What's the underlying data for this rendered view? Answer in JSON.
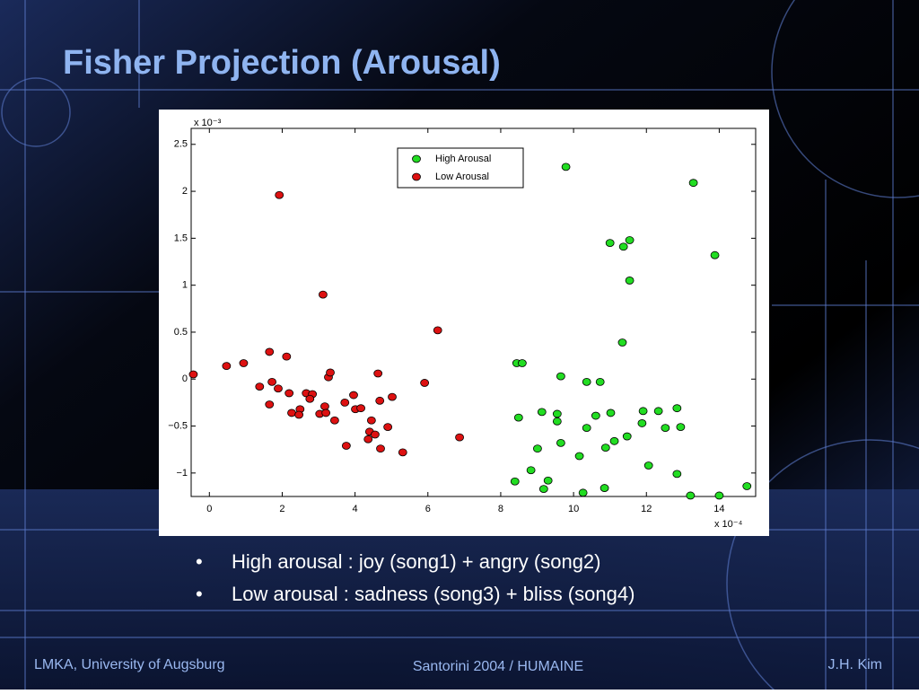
{
  "slide": {
    "title": "Fisher Projection (Arousal)",
    "bullets": [
      "High arousal : joy (song1) + angry (song2)",
      "Low arousal : sadness (song3) + bliss (song4)"
    ],
    "footer_left": "LMKA, University of Augsburg",
    "footer_center": "Santorini 2004 / HUMAINE",
    "footer_right": "J.H. Kim"
  },
  "chart_data": {
    "type": "scatter",
    "y_scale_label": "x 10⁻³",
    "x_scale_label": "x 10⁻⁴",
    "xlim": [
      -0.5,
      15
    ],
    "ylim": [
      -1.25,
      2.67
    ],
    "xticks": [
      0,
      2,
      4,
      6,
      8,
      10,
      12,
      14
    ],
    "yticks": [
      {
        "value": -1,
        "label": "−1"
      },
      {
        "value": -0.5,
        "label": "−0.5"
      },
      0,
      0.5,
      1,
      1.5,
      2,
      2.5
    ],
    "legend_position": "upper center",
    "series": [
      {
        "name": "High Arousal",
        "color": "#22dd22",
        "x": [
          9.79,
          13.29,
          11.0,
          11.37,
          11.54,
          13.88,
          11.54,
          11.34,
          8.44,
          8.59,
          9.65,
          10.36,
          10.73,
          8.49,
          9.13,
          9.55,
          9.55,
          10.61,
          11.02,
          11.91,
          12.33,
          12.84,
          11.88,
          12.52,
          12.94,
          10.36,
          9.65,
          9.01,
          11.12,
          11.47,
          10.88,
          10.16,
          12.06,
          8.83,
          8.39,
          9.3,
          9.18,
          10.85,
          10.26,
          12.84,
          13.21,
          14.0,
          14.76
        ],
        "values": [
          2.26,
          2.09,
          1.45,
          1.41,
          1.48,
          1.32,
          1.05,
          0.39,
          0.17,
          0.17,
          0.03,
          -0.03,
          -0.03,
          -0.41,
          -0.35,
          -0.37,
          -0.45,
          -0.39,
          -0.36,
          -0.34,
          -0.34,
          -0.31,
          -0.47,
          -0.52,
          -0.51,
          -0.52,
          -0.68,
          -0.74,
          -0.66,
          -0.61,
          -0.73,
          -0.82,
          -0.92,
          -0.97,
          -1.09,
          -1.08,
          -1.17,
          -1.16,
          -1.21,
          -1.01,
          -1.24,
          -1.24,
          -1.14
        ]
      },
      {
        "name": "Low Arousal",
        "color": "#dd1111",
        "x": [
          -0.44,
          0.47,
          0.94,
          1.92,
          1.65,
          2.12,
          1.38,
          1.72,
          1.89,
          1.65,
          2.19,
          2.26,
          2.49,
          2.46,
          2.66,
          2.83,
          2.76,
          3.03,
          3.12,
          3.17,
          3.2,
          3.27,
          3.32,
          3.44,
          3.72,
          3.76,
          3.96,
          4.01,
          4.16,
          4.36,
          4.4,
          4.45,
          4.55,
          4.63,
          4.68,
          4.7,
          4.9,
          5.02,
          5.31,
          5.91,
          6.27,
          6.87
        ],
        "values": [
          0.05,
          0.14,
          0.17,
          1.96,
          0.29,
          0.24,
          -0.08,
          -0.03,
          -0.1,
          -0.27,
          -0.15,
          -0.36,
          -0.32,
          -0.38,
          -0.15,
          -0.16,
          -0.21,
          -0.37,
          0.9,
          -0.29,
          -0.36,
          0.02,
          0.07,
          -0.44,
          -0.25,
          -0.71,
          -0.17,
          -0.32,
          -0.31,
          -0.64,
          -0.56,
          -0.44,
          -0.59,
          0.06,
          -0.23,
          -0.74,
          -0.51,
          -0.19,
          -0.78,
          -0.04,
          0.52,
          -0.62
        ]
      }
    ]
  }
}
